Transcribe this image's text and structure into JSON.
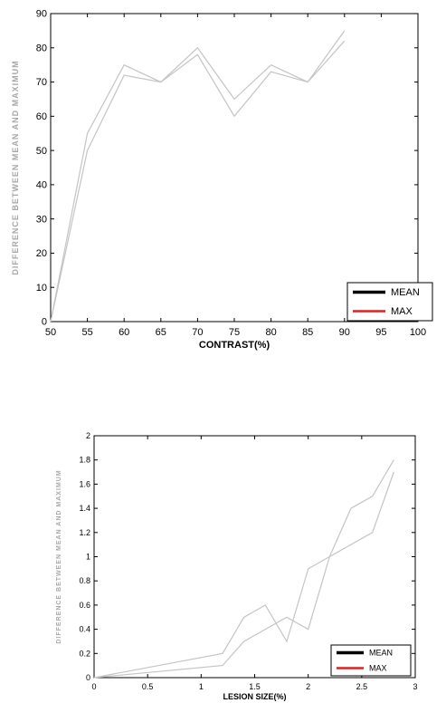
{
  "chart_data": [
    {
      "type": "line",
      "xlabel": "CONTRAST(%)",
      "ylabel": "DIFFERENCE BETWEEN MEAN AND MAXIMUM",
      "xlim": [
        50,
        100
      ],
      "ylim": [
        0,
        90
      ],
      "xticks": [
        "50",
        "55",
        "60",
        "65",
        "70",
        "75",
        "80",
        "85",
        "90",
        "95",
        "100"
      ],
      "yticks": [
        "0",
        "10",
        "20",
        "30",
        "40",
        "50",
        "60",
        "70",
        "80",
        "90"
      ],
      "grid": false,
      "legend_position": "bottom-right",
      "series": [
        {
          "name": "MEAN",
          "color": "#000000",
          "x": [
            50,
            55,
            60,
            65,
            70,
            75,
            80,
            85,
            90
          ],
          "y": [
            0,
            55,
            75,
            70,
            80,
            65,
            75,
            70,
            85
          ]
        },
        {
          "name": "MAX",
          "color": "#e02020",
          "x": [
            50,
            55,
            60,
            65,
            70,
            75,
            80,
            85,
            90
          ],
          "y": [
            0,
            50,
            72,
            70,
            78,
            60,
            73,
            70,
            82
          ]
        }
      ]
    },
    {
      "type": "line",
      "xlabel": "LESION SIZE(%)",
      "ylabel": "DIFFERENCE BETWEEN MEAN AND MAXIMUM",
      "xlim": [
        0,
        3
      ],
      "ylim": [
        0,
        2
      ],
      "xticks": [
        "0",
        "0.5",
        "1",
        "1.5",
        "2",
        "2.5",
        "3"
      ],
      "yticks": [
        "0",
        "0.2",
        "0.4",
        "0.6",
        "0.8",
        "1",
        "1.2",
        "1.4",
        "1.6",
        "1.8",
        "2"
      ],
      "grid": false,
      "legend_position": "bottom-right",
      "series": [
        {
          "name": "MEAN",
          "color": "#000000",
          "x": [
            0,
            1.2,
            1.4,
            1.6,
            1.8,
            2.0,
            2.2,
            2.4,
            2.6,
            2.8
          ],
          "y": [
            0,
            0.2,
            0.5,
            0.6,
            0.3,
            0.9,
            1.0,
            1.4,
            1.5,
            1.8
          ]
        },
        {
          "name": "MAX",
          "color": "#e02020",
          "x": [
            0,
            1.2,
            1.4,
            1.6,
            1.8,
            2.0,
            2.2,
            2.4,
            2.6,
            2.8
          ],
          "y": [
            0,
            0.1,
            0.3,
            0.4,
            0.5,
            0.4,
            1.0,
            1.1,
            1.2,
            1.7
          ]
        }
      ]
    }
  ]
}
